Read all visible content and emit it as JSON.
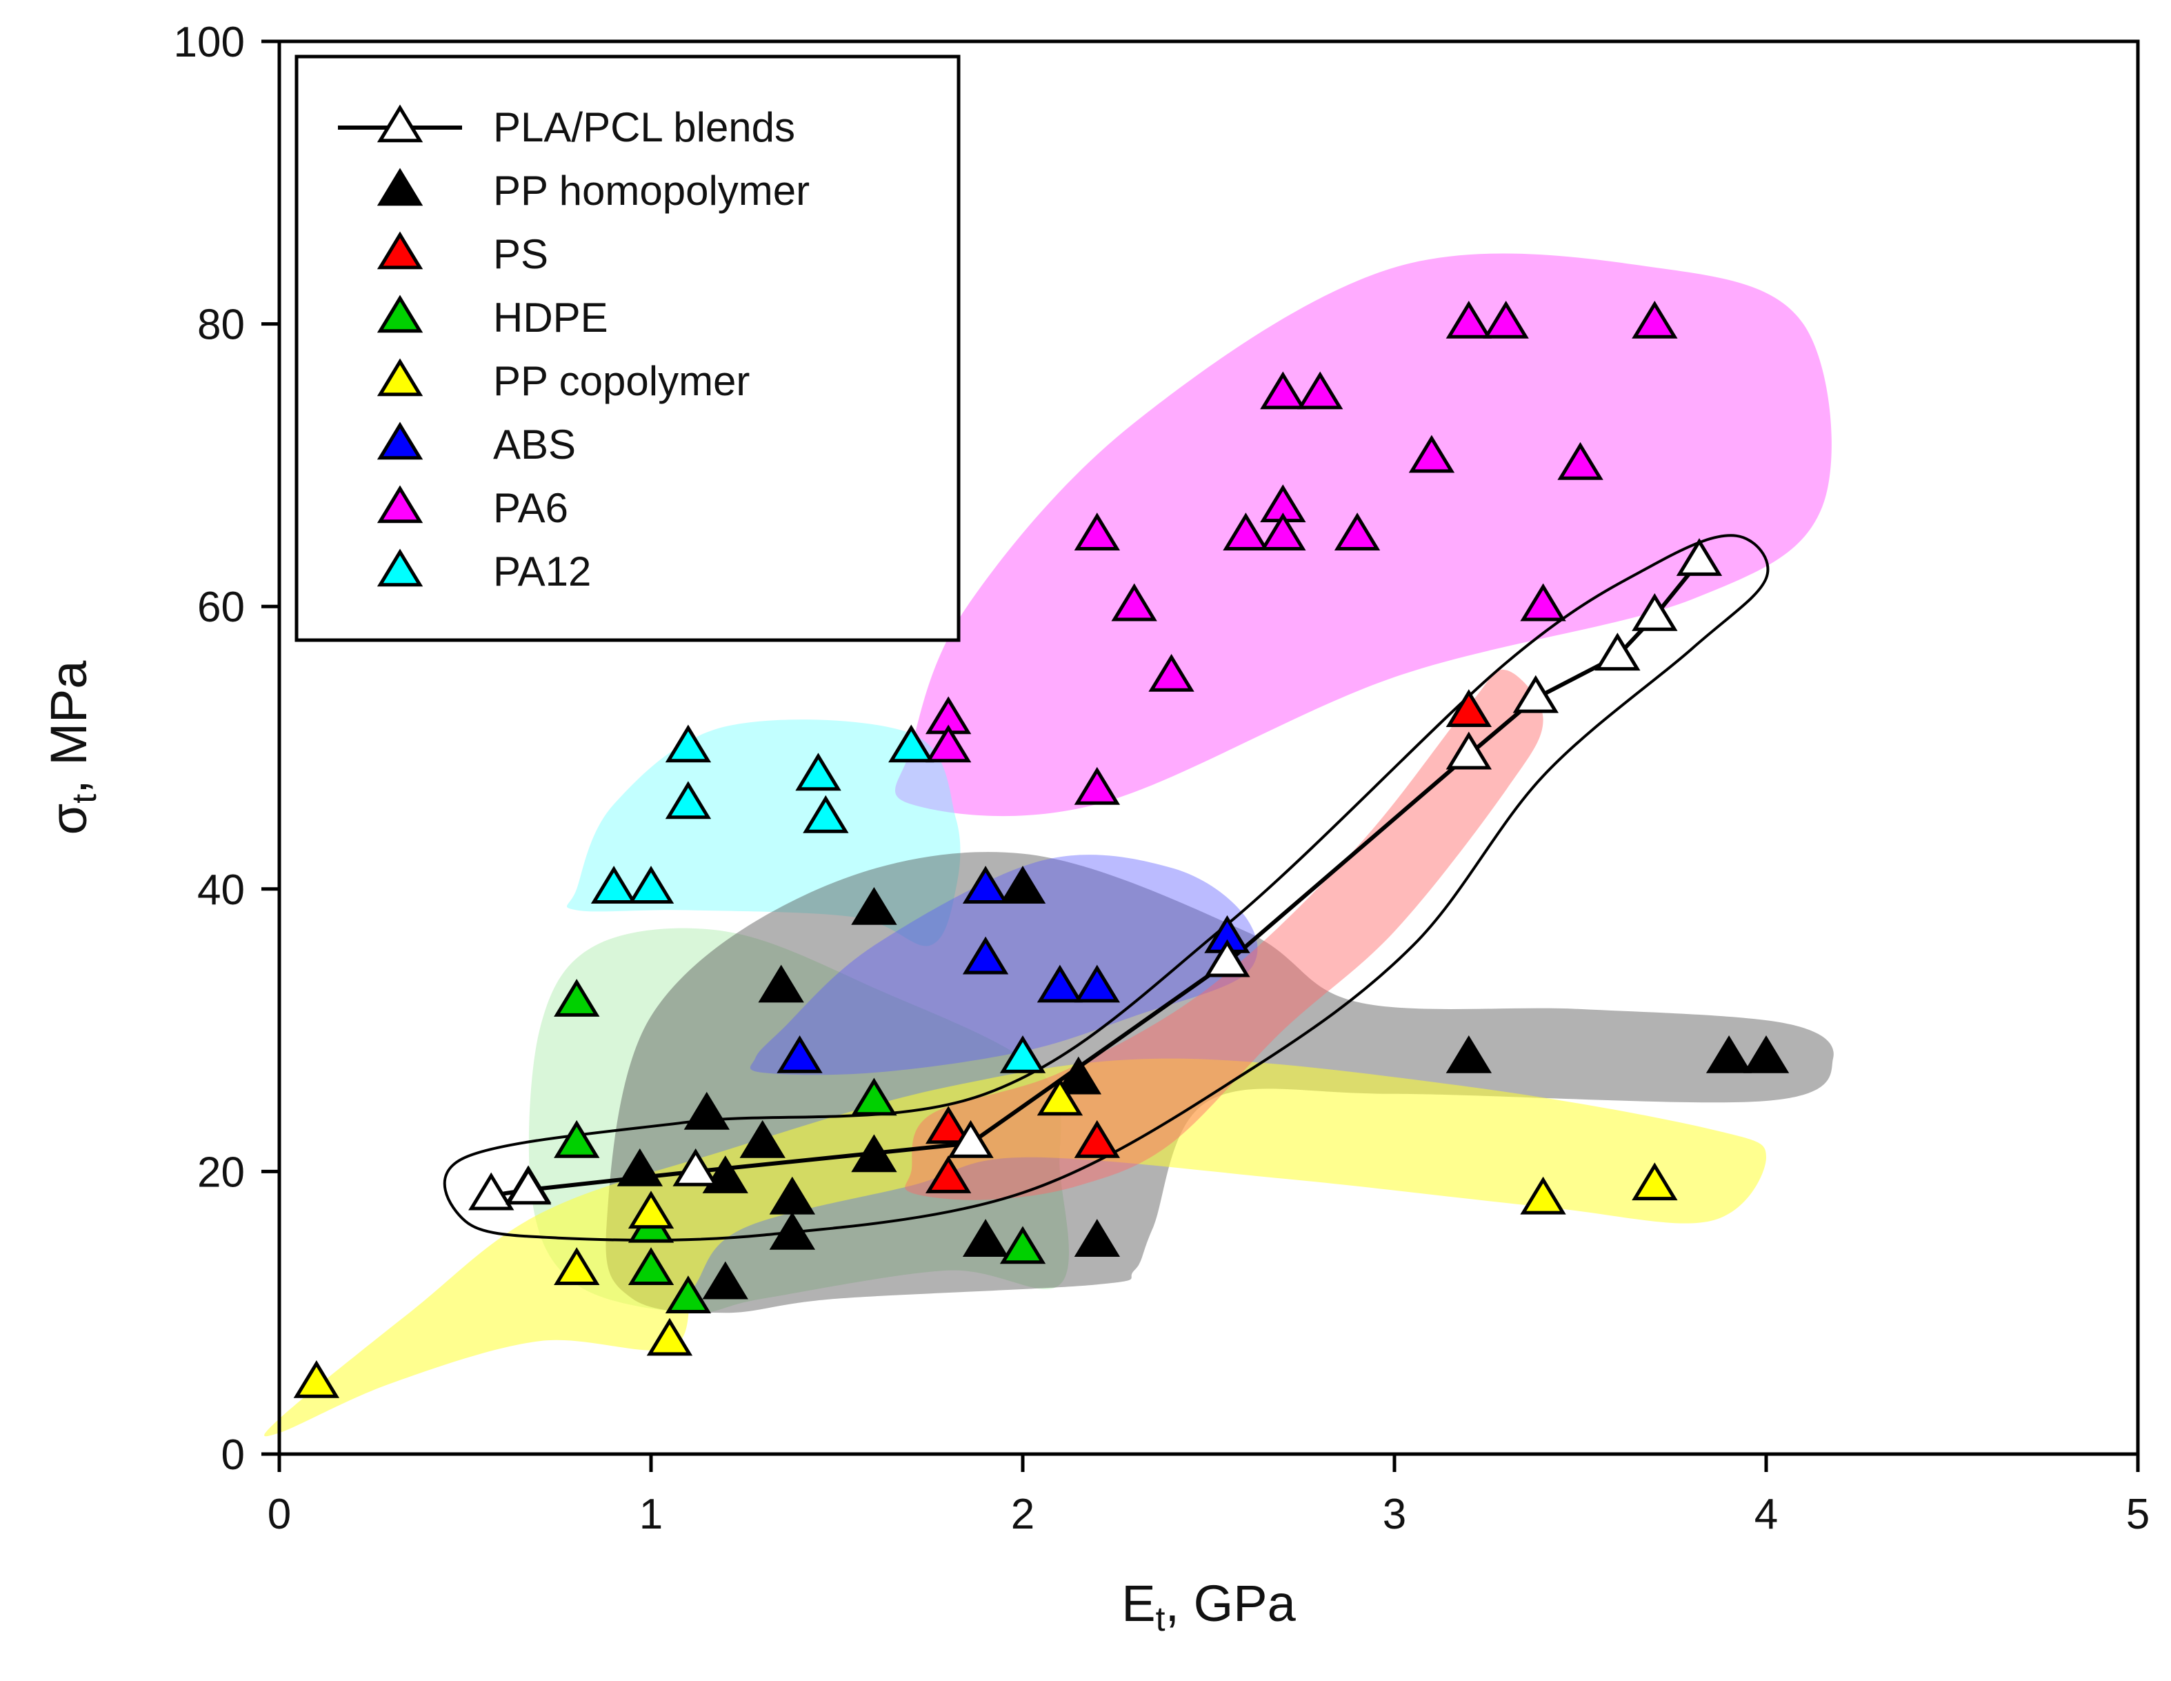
{
  "chart_data": {
    "type": "scatter",
    "title": "",
    "xlabel": "E",
    "xlabel_sub": "t",
    "xlabel_unit": ", GPa",
    "ylabel": "σ",
    "ylabel_sub": "t",
    "ylabel_unit": ", MPa",
    "xlim": [
      0,
      5
    ],
    "ylim": [
      0,
      100
    ],
    "xticks": [
      0,
      1,
      2,
      3,
      4,
      5
    ],
    "yticks": [
      0,
      20,
      40,
      60,
      80,
      100
    ],
    "grid": false,
    "legend_position": "top-left",
    "series": [
      {
        "name": "PLA/PCL blends",
        "color": "#ffffff",
        "line": true,
        "points": [
          [
            0.57,
            18.3
          ],
          [
            0.67,
            18.7
          ],
          [
            1.12,
            20.0
          ],
          [
            1.86,
            22.0
          ],
          [
            2.55,
            34.8
          ],
          [
            3.2,
            49.5
          ],
          [
            3.38,
            53.5
          ],
          [
            3.6,
            56.5
          ],
          [
            3.7,
            59.3
          ],
          [
            3.82,
            63.2
          ]
        ]
      },
      {
        "name": "PP homopolymer",
        "color": "#000000",
        "points": [
          [
            0.97,
            20
          ],
          [
            1.15,
            24
          ],
          [
            1.2,
            19.5
          ],
          [
            1.2,
            12
          ],
          [
            1.3,
            22
          ],
          [
            1.35,
            33
          ],
          [
            1.38,
            18
          ],
          [
            1.38,
            15.5
          ],
          [
            1.6,
            21
          ],
          [
            1.6,
            38.5
          ],
          [
            1.9,
            15
          ],
          [
            2.0,
            40
          ],
          [
            2.15,
            26.5
          ],
          [
            2.2,
            15
          ],
          [
            3.2,
            28
          ],
          [
            3.9,
            28
          ],
          [
            4.0,
            28
          ]
        ]
      },
      {
        "name": "PS",
        "color": "#ff0000",
        "points": [
          [
            1.8,
            23
          ],
          [
            1.8,
            19.5
          ],
          [
            2.2,
            22
          ],
          [
            3.2,
            52.5
          ]
        ]
      },
      {
        "name": "HDPE",
        "color": "#00d000",
        "points": [
          [
            0.8,
            32
          ],
          [
            0.8,
            22
          ],
          [
            1.0,
            16
          ],
          [
            1.0,
            13
          ],
          [
            1.1,
            11
          ],
          [
            1.6,
            25
          ],
          [
            2.0,
            14.5
          ]
        ]
      },
      {
        "name": "PP copolymer",
        "color": "#ffff00",
        "points": [
          [
            0.1,
            5
          ],
          [
            0.67,
            18.8
          ],
          [
            0.8,
            13
          ],
          [
            1.0,
            17
          ],
          [
            1.05,
            8
          ],
          [
            2.1,
            25
          ],
          [
            3.4,
            18
          ],
          [
            3.7,
            19
          ]
        ]
      },
      {
        "name": "ABS",
        "color": "#0000ff",
        "points": [
          [
            1.4,
            28
          ],
          [
            1.9,
            40
          ],
          [
            1.9,
            35
          ],
          [
            2.1,
            33
          ],
          [
            2.2,
            33
          ],
          [
            2.55,
            36.5
          ]
        ]
      },
      {
        "name": "PA6",
        "color": "#ff00ff",
        "points": [
          [
            1.8,
            52
          ],
          [
            1.8,
            50
          ],
          [
            2.2,
            65
          ],
          [
            2.2,
            47
          ],
          [
            2.3,
            60
          ],
          [
            2.4,
            55
          ],
          [
            2.6,
            65
          ],
          [
            2.7,
            75
          ],
          [
            2.7,
            67
          ],
          [
            2.7,
            65
          ],
          [
            2.8,
            75
          ],
          [
            2.9,
            65
          ],
          [
            3.1,
            70.5
          ],
          [
            3.2,
            80
          ],
          [
            3.3,
            80
          ],
          [
            3.4,
            60
          ],
          [
            3.5,
            70
          ],
          [
            3.7,
            80
          ]
        ]
      },
      {
        "name": "PA12",
        "color": "#00ffff",
        "points": [
          [
            0.9,
            40
          ],
          [
            1.0,
            40
          ],
          [
            1.1,
            50
          ],
          [
            1.1,
            46
          ],
          [
            1.45,
            48
          ],
          [
            1.47,
            45
          ],
          [
            1.7,
            50
          ],
          [
            2.0,
            28
          ]
        ]
      }
    ]
  },
  "regions": [
    {
      "name": "PA6",
      "color": "#ff66ff",
      "opacity": 0.55
    },
    {
      "name": "PA12",
      "color": "#66ffff",
      "opacity": 0.4
    },
    {
      "name": "HDPE",
      "color": "#66dd66",
      "opacity": 0.25
    },
    {
      "name": "PP homopolymer",
      "color": "#555555",
      "opacity": 0.45
    },
    {
      "name": "ABS",
      "color": "#5555ff",
      "opacity": 0.4
    },
    {
      "name": "PP copolymer",
      "color": "#ffff33",
      "opacity": 0.55
    },
    {
      "name": "PS",
      "color": "#ff6666",
      "opacity": 0.45
    }
  ]
}
